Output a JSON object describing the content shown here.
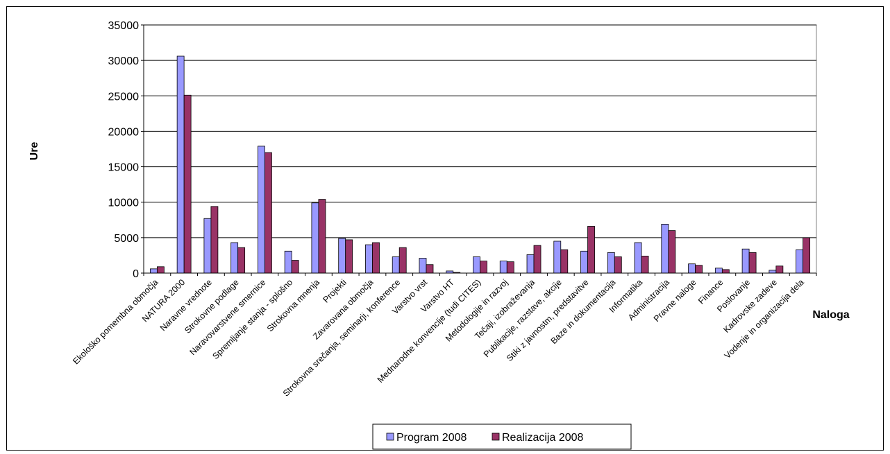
{
  "chart_data": {
    "type": "bar",
    "title": "",
    "xlabel": "Naloga",
    "ylabel": "Ure",
    "ylim": [
      0,
      35000
    ],
    "y_ticks": [
      "0",
      "5000",
      "10000",
      "15000",
      "20000",
      "25000",
      "30000",
      "35000"
    ],
    "grid": true,
    "legend_position": "bottom",
    "categories": [
      "Ekološko pomembna območja",
      "NATURA 2000",
      "Naravne vrednote",
      "Strokovne podlage",
      "Naravovarstvene smernice",
      "Spremljanje stanja - splošno",
      "Strokovna mnenja",
      "Projekti",
      "Zavarovana območja",
      "Strokovna srečanja, seminarji, konference",
      "Varstvo vrst",
      "Varstvo HT",
      "Mednarodne konvencije (tudi CITES)",
      "Metodologije in razvoj",
      "Tečaji, izobraževanja",
      "Publikacije, razstave, akcije",
      "Stiki z javnostm, predstavitve",
      "Baze in dokumentacija",
      "Informatika",
      "Administracija",
      "Pravne naloge",
      "Finance",
      "Poslovanje",
      "Kadrovske zadeve",
      "Vodenje in organizacija dela"
    ],
    "series": [
      {
        "name": "Program 2008",
        "color": "#9999ff",
        "values": [
          600,
          30600,
          7700,
          4300,
          17900,
          3100,
          9900,
          4900,
          4000,
          2300,
          2100,
          300,
          2300,
          1700,
          2600,
          4500,
          3100,
          2900,
          4300,
          6900,
          1300,
          700,
          3400,
          400,
          3300
        ]
      },
      {
        "name": "Realizacija 2008",
        "color": "#993366",
        "values": [
          900,
          25100,
          9400,
          3600,
          17000,
          1800,
          10400,
          4700,
          4300,
          3600,
          1200,
          100,
          1700,
          1600,
          3900,
          3300,
          6600,
          2300,
          2400,
          6000,
          1100,
          500,
          2900,
          1000,
          5000
        ]
      }
    ]
  }
}
